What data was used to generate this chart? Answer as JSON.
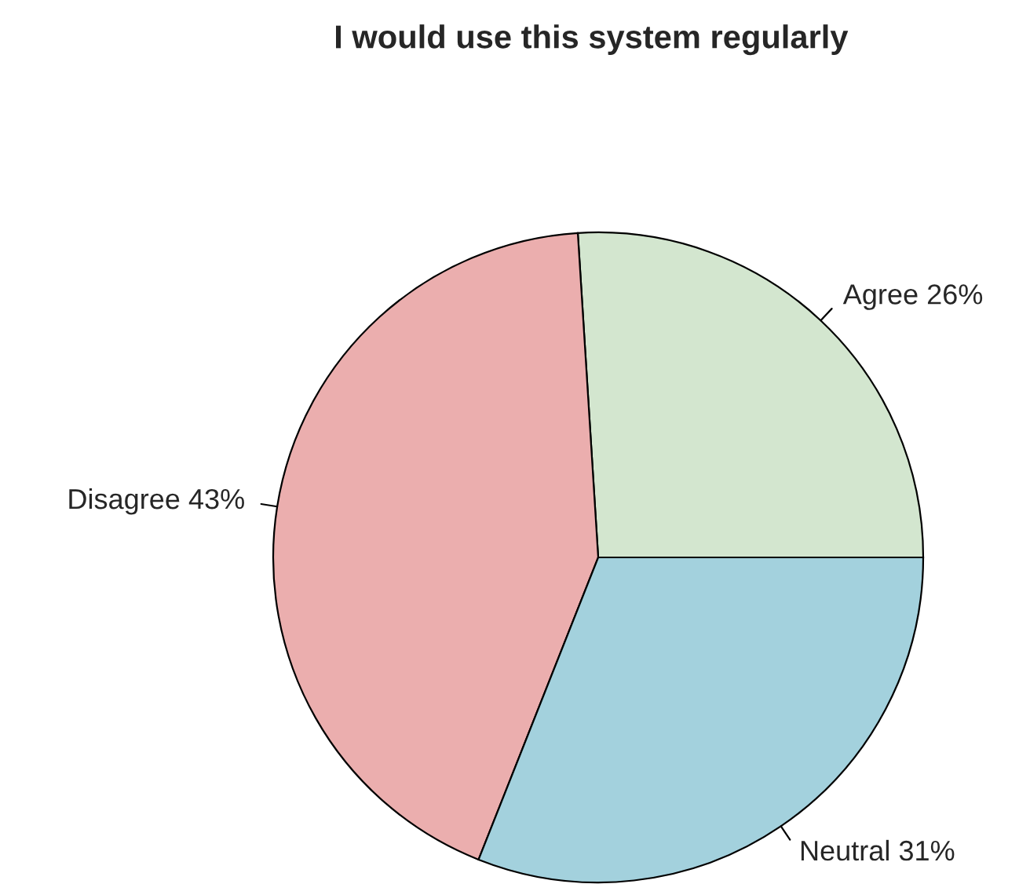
{
  "chart_data": {
    "type": "pie",
    "title": "I would use this system regularly",
    "categories": [
      "Agree",
      "Disagree",
      "Neutral"
    ],
    "values": [
      26,
      43,
      31
    ],
    "value_labels": [
      "26%",
      "43%",
      "31%"
    ],
    "colors": [
      "#d3e6cf",
      "#ebaeae",
      "#a3d1dd"
    ]
  }
}
